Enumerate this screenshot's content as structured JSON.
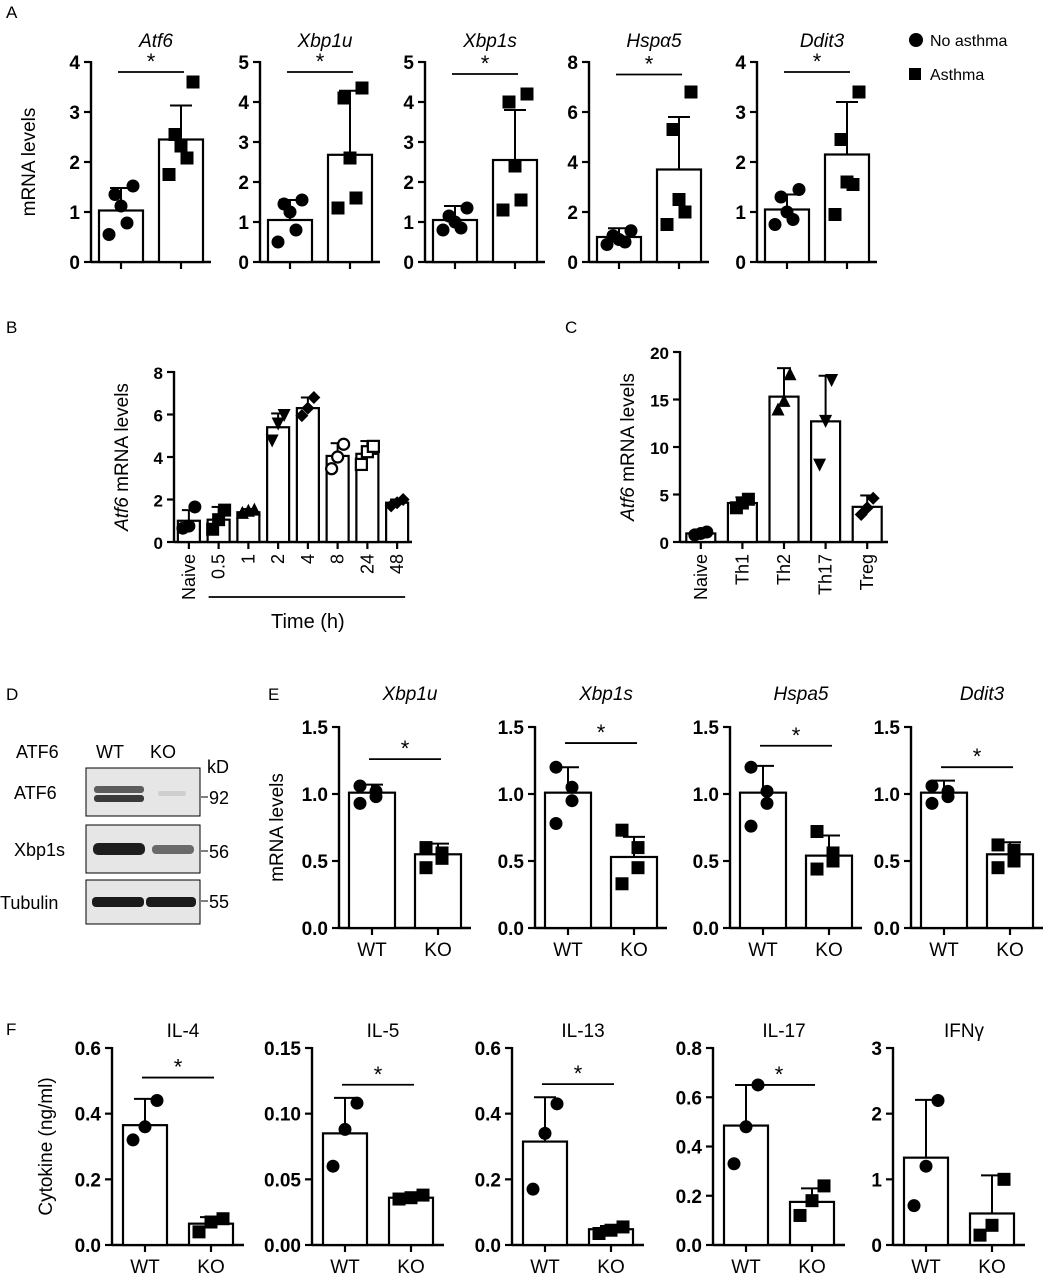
{
  "panel_labels": {
    "A": "A",
    "B": "B",
    "C": "C",
    "D": "D",
    "E": "E",
    "F": "F"
  },
  "legend": [
    {
      "label": "No asthma",
      "marker": "circle"
    },
    {
      "label": "Asthma",
      "marker": "square"
    }
  ],
  "western_blot": {
    "header": "ATF6",
    "lane_labels": [
      "WT",
      "KO"
    ],
    "kd_label": "kD",
    "rows": [
      {
        "protein": "ATF6",
        "marker": "92"
      },
      {
        "protein": "Xbp1s",
        "marker": "56"
      },
      {
        "protein": "Tubulin",
        "marker": "55"
      }
    ]
  },
  "chart_data": [
    {
      "panel": "A",
      "type": "bar",
      "title": "Atf6",
      "title_italic": true,
      "ylabel": "mRNA levels",
      "ylim": [
        0,
        4
      ],
      "yticks": [
        "0",
        "1",
        "2",
        "3",
        "4"
      ],
      "categories": [
        "No asthma",
        "Asthma"
      ],
      "show_xlabels": false,
      "markers": [
        "circle",
        "square"
      ],
      "values": [
        1.03,
        2.45
      ],
      "errors": [
        0.45,
        0.68
      ],
      "points": [
        [
          0.55,
          0.78,
          1.12,
          1.35,
          1.52
        ],
        [
          1.75,
          2.08,
          2.32,
          2.55,
          3.6
        ]
      ],
      "sig": {
        "label": "*",
        "y": 3.8
      }
    },
    {
      "panel": "A",
      "type": "bar",
      "title": "Xbp1u",
      "title_italic": true,
      "ylabel": "",
      "ylim": [
        0,
        5
      ],
      "yticks": [
        "0",
        "1",
        "2",
        "3",
        "4",
        "5"
      ],
      "categories": [
        "No asthma",
        "Asthma"
      ],
      "show_xlabels": false,
      "markers": [
        "circle",
        "square"
      ],
      "values": [
        1.05,
        2.68
      ],
      "errors": [
        0.5,
        1.6
      ],
      "points": [
        [
          0.5,
          0.8,
          1.25,
          1.45,
          1.55
        ],
        [
          1.35,
          1.6,
          2.6,
          4.1,
          4.35
        ]
      ],
      "sig": {
        "label": "*",
        "y": 4.75
      }
    },
    {
      "panel": "A",
      "type": "bar",
      "title": "Xbp1s",
      "title_italic": true,
      "ylabel": "",
      "ylim": [
        0,
        5
      ],
      "yticks": [
        "0",
        "1",
        "2",
        "3",
        "4",
        "5"
      ],
      "categories": [
        "No asthma",
        "Asthma"
      ],
      "show_xlabels": false,
      "markers": [
        "circle",
        "square"
      ],
      "values": [
        1.05,
        2.55
      ],
      "errors": [
        0.35,
        1.25
      ],
      "points": [
        [
          0.8,
          0.85,
          1.0,
          1.15,
          1.35
        ],
        [
          1.3,
          1.55,
          2.4,
          4.0,
          4.2
        ]
      ],
      "sig": {
        "label": "*",
        "y": 4.7
      }
    },
    {
      "panel": "A",
      "type": "bar",
      "title": "Hspα5",
      "title_italic": true,
      "ylabel": "",
      "ylim": [
        0,
        8
      ],
      "yticks": [
        "0",
        "2",
        "4",
        "6",
        "8"
      ],
      "categories": [
        "No asthma",
        "Asthma"
      ],
      "show_xlabels": false,
      "markers": [
        "circle",
        "square"
      ],
      "values": [
        1.0,
        3.7
      ],
      "errors": [
        0.35,
        2.1
      ],
      "points": [
        [
          0.7,
          0.8,
          0.9,
          1.05,
          1.25
        ],
        [
          1.5,
          2.0,
          2.5,
          5.3,
          6.8
        ]
      ],
      "sig": {
        "label": "*",
        "y": 7.5
      }
    },
    {
      "panel": "A",
      "type": "bar",
      "title": "Ddit3",
      "title_italic": true,
      "ylabel": "",
      "ylim": [
        0,
        4
      ],
      "yticks": [
        "0",
        "1",
        "2",
        "3",
        "4"
      ],
      "categories": [
        "No asthma",
        "Asthma"
      ],
      "show_xlabels": false,
      "markers": [
        "circle",
        "square"
      ],
      "values": [
        1.05,
        2.15
      ],
      "errors": [
        0.3,
        1.05
      ],
      "points": [
        [
          0.75,
          0.85,
          1.0,
          1.3,
          1.45
        ],
        [
          0.95,
          1.55,
          1.6,
          2.45,
          3.4
        ]
      ],
      "sig": {
        "label": "*",
        "y": 3.8
      }
    },
    {
      "panel": "B",
      "type": "bar",
      "title": "",
      "ylabel_italic_part": "Atf6",
      "ylabel": " mRNA levels",
      "ylim": [
        0,
        8
      ],
      "yticks": [
        "0",
        "2",
        "4",
        "6",
        "8"
      ],
      "categories": [
        "Naive",
        "0.5",
        "1",
        "2",
        "4",
        "8",
        "24",
        "48"
      ],
      "rotated_xlabels": true,
      "xlabel": "Time (h)",
      "xlabel_bracket_start": 1,
      "markers": [
        "circle",
        "square",
        "triangle",
        "triangle-down",
        "diamond",
        "circle-open",
        "square-open",
        "diamond"
      ],
      "values": [
        1.0,
        1.05,
        1.4,
        5.4,
        6.3,
        4.05,
        4.15,
        1.85
      ],
      "errors": [
        0.5,
        0.6,
        0.15,
        0.65,
        0.5,
        0.6,
        0.6,
        0.15
      ],
      "points": [
        [
          0.65,
          0.75,
          1.65
        ],
        [
          0.6,
          1.05,
          1.5
        ],
        [
          1.35,
          1.45,
          1.5
        ],
        [
          4.8,
          5.6,
          6.0
        ],
        [
          5.95,
          6.3,
          6.8
        ],
        [
          3.45,
          4.0,
          4.6
        ],
        [
          3.65,
          4.25,
          4.5
        ],
        [
          1.7,
          1.85,
          2.0
        ]
      ],
      "sig": null
    },
    {
      "panel": "C",
      "type": "bar",
      "title": "",
      "ylabel_italic_part": "Atf6",
      "ylabel": " mRNA levels",
      "ylim": [
        0,
        20
      ],
      "yticks": [
        "0",
        "5",
        "10",
        "15",
        "20"
      ],
      "categories": [
        "Naive",
        "Th1",
        "Th2",
        "Th17",
        "Treg"
      ],
      "rotated_xlabels": true,
      "markers": [
        "circle",
        "square",
        "triangle",
        "triangle-down",
        "diamond"
      ],
      "values": [
        0.9,
        4.1,
        15.3,
        12.7,
        3.7
      ],
      "errors": [
        0.2,
        0.6,
        3.0,
        4.8,
        1.2
      ],
      "points": [
        [
          0.75,
          0.9,
          1.05
        ],
        [
          3.6,
          4.1,
          4.5
        ],
        [
          13.9,
          14.8,
          17.6
        ],
        [
          8.2,
          12.8,
          17.1
        ],
        [
          2.9,
          3.6,
          4.6
        ]
      ],
      "sig": null
    },
    {
      "panel": "E",
      "type": "bar",
      "title": "Xbp1u",
      "title_italic": true,
      "ylabel": "mRNA levels",
      "ylim": [
        0,
        1.5
      ],
      "yticks": [
        "0.0",
        "0.5",
        "1.0",
        "1.5"
      ],
      "categories": [
        "WT",
        "KO"
      ],
      "markers": [
        "circle",
        "square"
      ],
      "values": [
        1.01,
        0.55
      ],
      "errors": [
        0.06,
        0.08
      ],
      "points": [
        [
          0.93,
          0.98,
          1.02,
          1.06
        ],
        [
          0.45,
          0.52,
          0.56,
          0.6
        ]
      ],
      "sig": {
        "label": "*",
        "y": 1.26
      }
    },
    {
      "panel": "E",
      "type": "bar",
      "title": "Xbp1s",
      "title_italic": true,
      "ylabel": "",
      "ylim": [
        0,
        1.5
      ],
      "yticks": [
        "0.0",
        "0.5",
        "1.0",
        "1.5"
      ],
      "categories": [
        "WT",
        "KO"
      ],
      "markers": [
        "circle",
        "square"
      ],
      "values": [
        1.01,
        0.53
      ],
      "errors": [
        0.19,
        0.15
      ],
      "points": [
        [
          0.78,
          0.95,
          1.05,
          1.2
        ],
        [
          0.33,
          0.45,
          0.6,
          0.73
        ]
      ],
      "sig": {
        "label": "*",
        "y": 1.38
      }
    },
    {
      "panel": "E",
      "type": "bar",
      "title": "Hspa5",
      "title_italic": true,
      "ylabel": "",
      "ylim": [
        0,
        1.5
      ],
      "yticks": [
        "0.0",
        "0.5",
        "1.0",
        "1.5"
      ],
      "categories": [
        "WT",
        "KO"
      ],
      "markers": [
        "circle",
        "square"
      ],
      "values": [
        1.01,
        0.54
      ],
      "errors": [
        0.2,
        0.15
      ],
      "points": [
        [
          0.76,
          0.93,
          1.02,
          1.2
        ],
        [
          0.44,
          0.5,
          0.56,
          0.72
        ]
      ],
      "sig": {
        "label": "*",
        "y": 1.36
      }
    },
    {
      "panel": "E",
      "type": "bar",
      "title": "Ddit3",
      "title_italic": true,
      "ylabel": "",
      "ylim": [
        0,
        1.5
      ],
      "yticks": [
        "0.0",
        "0.5",
        "1.0",
        "1.5"
      ],
      "categories": [
        "WT",
        "KO"
      ],
      "markers": [
        "circle",
        "square"
      ],
      "values": [
        1.01,
        0.55
      ],
      "errors": [
        0.09,
        0.09
      ],
      "points": [
        [
          0.93,
          0.98,
          1.02,
          1.06
        ],
        [
          0.45,
          0.5,
          0.58,
          0.62
        ]
      ],
      "sig": {
        "label": "*",
        "y": 1.2
      }
    },
    {
      "panel": "F",
      "type": "bar",
      "title": "IL-4",
      "title_italic": false,
      "ylabel": "Cytokine (ng/ml)",
      "ylim": [
        0,
        0.6
      ],
      "yticks": [
        "0.0",
        "0.2",
        "0.4",
        "0.6"
      ],
      "categories": [
        "WT",
        "KO"
      ],
      "markers": [
        "circle",
        "square"
      ],
      "values": [
        0.365,
        0.065
      ],
      "errors": [
        0.08,
        0.02
      ],
      "points": [
        [
          0.32,
          0.36,
          0.44
        ],
        [
          0.04,
          0.07,
          0.08
        ]
      ],
      "sig": {
        "label": "*",
        "y": 0.51
      }
    },
    {
      "panel": "F",
      "type": "bar",
      "title": "IL-5",
      "title_italic": false,
      "ylabel": "",
      "ylim": [
        0,
        0.15
      ],
      "yticks": [
        "0.00",
        "0.05",
        "0.10",
        "0.15"
      ],
      "categories": [
        "WT",
        "KO"
      ],
      "markers": [
        "circle",
        "square"
      ],
      "values": [
        0.085,
        0.036
      ],
      "errors": [
        0.027,
        0.002
      ],
      "points": [
        [
          0.06,
          0.088,
          0.108
        ],
        [
          0.035,
          0.036,
          0.038
        ]
      ],
      "sig": {
        "label": "*",
        "y": 0.122
      }
    },
    {
      "panel": "F",
      "type": "bar",
      "title": "IL-13",
      "title_italic": false,
      "ylabel": "",
      "ylim": [
        0,
        0.6
      ],
      "yticks": [
        "0.0",
        "0.2",
        "0.4",
        "0.6"
      ],
      "categories": [
        "WT",
        "KO"
      ],
      "markers": [
        "circle",
        "square"
      ],
      "values": [
        0.315,
        0.048
      ],
      "errors": [
        0.135,
        0.01
      ],
      "points": [
        [
          0.17,
          0.34,
          0.43
        ],
        [
          0.035,
          0.045,
          0.055
        ]
      ],
      "sig": {
        "label": "*",
        "y": 0.49
      }
    },
    {
      "panel": "F",
      "type": "bar",
      "title": "IL-17",
      "title_italic": false,
      "ylabel": "",
      "ylim": [
        0,
        0.8
      ],
      "yticks": [
        "0.0",
        "0.2",
        "0.4",
        "0.6",
        "0.8"
      ],
      "categories": [
        "WT",
        "KO"
      ],
      "markers": [
        "circle",
        "square"
      ],
      "values": [
        0.485,
        0.175
      ],
      "errors": [
        0.165,
        0.055
      ],
      "points": [
        [
          0.33,
          0.48,
          0.65
        ],
        [
          0.12,
          0.18,
          0.24
        ]
      ],
      "sig": {
        "label": "*",
        "y": 0.65
      }
    },
    {
      "panel": "F",
      "type": "bar",
      "title": "IFNγ",
      "title_italic": false,
      "ylabel": "",
      "ylim": [
        0,
        3
      ],
      "yticks": [
        "0",
        "1",
        "2",
        "3"
      ],
      "categories": [
        "WT",
        "KO"
      ],
      "markers": [
        "circle",
        "square"
      ],
      "values": [
        1.33,
        0.48
      ],
      "errors": [
        0.88,
        0.58
      ],
      "points": [
        [
          0.6,
          1.2,
          2.2
        ],
        [
          0.15,
          0.3,
          1.0
        ]
      ],
      "sig": null
    }
  ]
}
